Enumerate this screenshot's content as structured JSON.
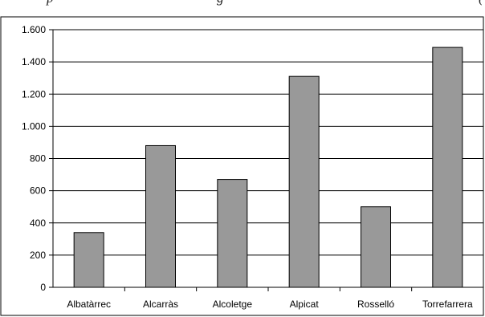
{
  "header_fragment": {
    "left": "p",
    "middle": "g",
    "right": "("
  },
  "chart_data": {
    "type": "bar",
    "title": "",
    "xlabel": "",
    "ylabel": "",
    "categories": [
      "Albatàrrec",
      "Alcarràs",
      "Alcoletge",
      "Alpicat",
      "Rosselló",
      "Torrefarrera"
    ],
    "values": [
      340,
      880,
      670,
      1310,
      500,
      1490
    ],
    "ylim": [
      0,
      1600
    ],
    "yticks": [
      0,
      200,
      400,
      600,
      800,
      1000,
      1200,
      1400,
      1600
    ],
    "ytick_labels": [
      "0",
      "200",
      "400",
      "600",
      "800",
      "1.000",
      "1.200",
      "1.400",
      "1.600"
    ],
    "grid": true,
    "bar_color": "#999999",
    "bar_edge_color": "#000000"
  }
}
